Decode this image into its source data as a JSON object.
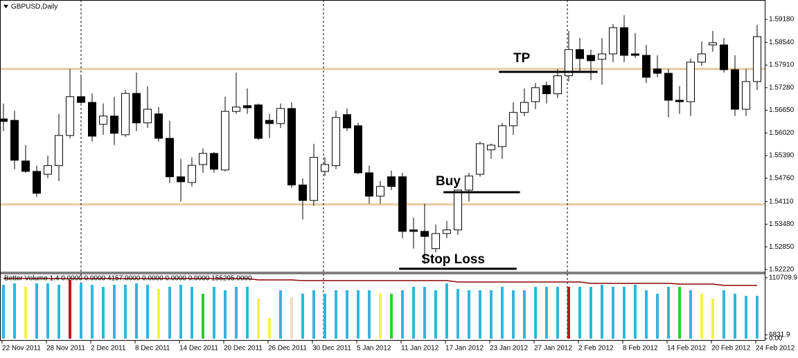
{
  "chart_data": [
    {
      "type": "candlestick",
      "title": "GBPUSD,Daily",
      "categories": [
        "22 Nov 2011",
        null,
        null,
        null,
        "28 Nov 2011",
        null,
        null,
        null,
        "2 Dec 2011",
        null,
        null,
        null,
        "8 Dec 2011",
        null,
        null,
        null,
        "14 Dec 2011",
        null,
        null,
        null,
        "20 Dec 2011",
        null,
        null,
        null,
        "26 Dec 2011",
        null,
        null,
        null,
        "30 Dec 2011",
        null,
        null,
        null,
        "5 Jan 2012",
        null,
        null,
        null,
        "11 Jan 2012",
        null,
        null,
        null,
        "17 Jan 2012",
        null,
        null,
        null,
        "23 Jan 2012",
        null,
        null,
        null,
        "27 Jan 2012",
        null,
        null,
        null,
        "2 Feb 2012",
        null,
        null,
        null,
        "8 Feb 2012",
        null,
        null,
        null,
        "14 Feb 2012",
        null,
        null,
        null,
        "20 Feb 2012",
        null,
        null,
        null,
        "24 Feb 2012"
      ],
      "open": [
        1.5641,
        1.5637,
        1.5524,
        1.5495,
        1.5487,
        1.5511,
        1.5595,
        1.5703,
        1.5687,
        1.5626,
        1.5649,
        1.5597,
        1.5712,
        1.563,
        1.5655,
        1.5587,
        1.548,
        1.5464,
        1.5514,
        1.5545,
        1.5499,
        1.5662,
        1.5678,
        1.568,
        1.5637,
        1.5628,
        1.567,
        1.5457,
        1.5414,
        1.5495,
        1.5511,
        1.5653,
        1.5622,
        1.5491,
        1.5426,
        1.548,
        1.548,
        1.5332,
        1.5328,
        1.528,
        1.5322,
        1.5332,
        1.5443,
        1.5487,
        1.5555,
        1.5564,
        1.5622,
        1.5659,
        1.5689,
        1.5734,
        1.5711,
        1.5761,
        1.5834,
        1.5818,
        1.5807,
        1.5822,
        1.5895,
        1.5822,
        1.5818,
        1.578,
        1.5768,
        1.5693,
        1.5689,
        1.5799,
        1.5847,
        1.5847,
        1.5778,
        1.5668,
        1.5745
      ],
      "high": [
        1.5684,
        1.5664,
        1.5568,
        1.5511,
        1.5539,
        1.5655,
        1.578,
        1.5761,
        1.5712,
        1.5684,
        1.5703,
        1.5722,
        1.577,
        1.5732,
        1.5674,
        1.5636,
        1.553,
        1.5534,
        1.5559,
        1.5549,
        1.5703,
        1.577,
        1.5726,
        1.5684,
        1.5655,
        1.5684,
        1.5687,
        1.5476,
        1.5572,
        1.5534,
        1.5664,
        1.567,
        1.563,
        1.5511,
        1.5468,
        1.5497,
        1.5491,
        1.5366,
        1.5405,
        1.5347,
        1.5357,
        1.5443,
        1.5491,
        1.5578,
        1.5572,
        1.563,
        1.5687,
        1.5726,
        1.5741,
        1.5745,
        1.578,
        1.5886,
        1.5866,
        1.5834,
        1.5866,
        1.5905,
        1.593,
        1.588,
        1.5847,
        1.5818,
        1.578,
        1.5732,
        1.5809,
        1.5857,
        1.5886,
        1.5866,
        1.5818,
        1.578,
        1.5903
      ],
      "low": [
        1.5607,
        1.5501,
        1.5491,
        1.5424,
        1.5476,
        1.5468,
        1.5587,
        1.5684,
        1.5578,
        1.5597,
        1.5568,
        1.5591,
        1.5607,
        1.5616,
        1.5578,
        1.5462,
        1.5411,
        1.5453,
        1.5491,
        1.5491,
        1.5495,
        1.5655,
        1.5655,
        1.5582,
        1.5587,
        1.5616,
        1.5449,
        1.5361,
        1.5399,
        1.5482,
        1.5501,
        1.5607,
        1.5487,
        1.5405,
        1.5405,
        1.5443,
        1.5309,
        1.528,
        1.5237,
        1.527,
        1.5309,
        1.5318,
        1.5411,
        1.548,
        1.553,
        1.553,
        1.5597,
        1.5649,
        1.5668,
        1.5684,
        1.5699,
        1.5745,
        1.577,
        1.5749,
        1.5736,
        1.5799,
        1.5799,
        1.5811,
        1.5741,
        1.5757,
        1.5645,
        1.5655,
        1.5649,
        1.5789,
        1.5828,
        1.577,
        1.5649,
        1.5649,
        1.5722
      ],
      "close": [
        1.5634,
        1.5526,
        1.5495,
        1.5434,
        1.5511,
        1.5595,
        1.5703,
        1.5687,
        1.5593,
        1.5649,
        1.5601,
        1.5712,
        1.563,
        1.5668,
        1.5587,
        1.548,
        1.5466,
        1.5512,
        1.5545,
        1.5501,
        1.5662,
        1.5674,
        1.5672,
        1.5587,
        1.5628,
        1.567,
        1.5457,
        1.5414,
        1.5534,
        1.5514,
        1.5645,
        1.5616,
        1.5491,
        1.5426,
        1.5453,
        1.5453,
        1.5328,
        1.5328,
        1.5314,
        1.5322,
        1.5332,
        1.5443,
        1.5482,
        1.5572,
        1.5568,
        1.5622,
        1.5659,
        1.5687,
        1.5728,
        1.5711,
        1.5761,
        1.5834,
        1.5809,
        1.5803,
        1.5822,
        1.5895,
        1.5818,
        1.5818,
        1.5757,
        1.5768,
        1.5693,
        1.5689,
        1.5799,
        1.5822,
        1.5853,
        1.5778,
        1.5668,
        1.5745,
        1.587
      ],
      "up_color": "#ffffff",
      "down_color": "#000000",
      "ylim": [
        1.5216,
        1.5972
      ],
      "yticks": [
        {
          "value": 1.5918,
          "label": "1.59180"
        },
        {
          "value": 1.5854,
          "label": "1.58540"
        },
        {
          "value": 1.5791,
          "label": "1.57910"
        },
        {
          "value": 1.5728,
          "label": "1.57280"
        },
        {
          "value": 1.5665,
          "label": "1.56650"
        },
        {
          "value": 1.5602,
          "label": "1.56020"
        },
        {
          "value": 1.5539,
          "label": "1.55390"
        },
        {
          "value": 1.5476,
          "label": "1.54760"
        },
        {
          "value": 1.5411,
          "label": "1.54110"
        },
        {
          "value": 1.5348,
          "label": "1.53480"
        },
        {
          "value": 1.5285,
          "label": "1.52850"
        },
        {
          "value": 1.5222,
          "label": "1.52220"
        }
      ],
      "levels": [
        {
          "value": 1.578,
          "color": "#e6cba4"
        },
        {
          "value": 1.5403,
          "color": "#e6cba4"
        }
      ],
      "annotations": [
        {
          "text": "TP",
          "value": 1.5772
        },
        {
          "text": "Buy",
          "value": 1.5437
        },
        {
          "text": "Stop Loss",
          "value": 1.5224
        }
      ]
    },
    {
      "type": "bar",
      "title": "Better Volume 1.4 0.0000 0.0000 4157.0000 0.0000 0.0000 0.0000 155295.0000",
      "values": [
        98100,
        100600,
        94400,
        100600,
        100600,
        98100,
        106900,
        100600,
        98100,
        94400,
        98100,
        98100,
        100600,
        98100,
        90600,
        94400,
        98100,
        94400,
        81800,
        94400,
        88100,
        94400,
        94400,
        73000,
        37700,
        88100,
        75500,
        81800,
        88100,
        81800,
        88100,
        88100,
        88100,
        88100,
        81800,
        81800,
        88100,
        94400,
        94400,
        88100,
        100600,
        90600,
        88100,
        88100,
        88100,
        94400,
        88100,
        88100,
        94400,
        94400,
        94400,
        94400,
        94400,
        94400,
        98100,
        94400,
        94400,
        98100,
        88100,
        81800,
        94400,
        94400,
        88100,
        81800,
        73000,
        88100,
        81800,
        78000,
        78000
      ],
      "colors": [
        "#33b5dc",
        "#33b5dc",
        "#f2f24a",
        "#33b5dc",
        "#33b5dc",
        "#33b5dc",
        "#c0141e",
        "#33b5dc",
        "#33b5dc",
        "#33b5dc",
        "#33b5dc",
        "#33b5dc",
        "#33b5dc",
        "#33b5dc",
        "#f2f24a",
        "#33b5dc",
        "#33b5dc",
        "#33b5dc",
        "#2ecc2e",
        "#33b5dc",
        "#33b5dc",
        "#33b5dc",
        "#33b5dc",
        "#f2f24a",
        "#f2f24a",
        "#33b5dc",
        "#f0dcc0",
        "#33b5dc",
        "#33b5dc",
        "#33b5dc",
        "#33b5dc",
        "#33b5dc",
        "#33b5dc",
        "#33b5dc",
        "#f2f24a",
        "#2ecc2e",
        "#33b5dc",
        "#33b5dc",
        "#33b5dc",
        "#33b5dc",
        "#33b5dc",
        "#33b5dc",
        "#33b5dc",
        "#33b5dc",
        "#33b5dc",
        "#33b5dc",
        "#33b5dc",
        "#33b5dc",
        "#33b5dc",
        "#33b5dc",
        "#33b5dc",
        "#c0141e",
        "#33b5dc",
        "#33b5dc",
        "#33b5dc",
        "#33b5dc",
        "#33b5dc",
        "#33b5dc",
        "#33b5dc",
        "#33b5dc",
        "#33b5dc",
        "#2ecc2e",
        "#33b5dc",
        "#f2f24a",
        "#f2f24a",
        "#33b5dc",
        "#33b5dc",
        "#33b5dc",
        "#33b5dc"
      ],
      "ylim": [
        0,
        110709.9
      ],
      "yticks": [
        110709.9,
        6831.9,
        {
          "value": 0,
          "label": "0.00"
        }
      ],
      "average": {
        "color": "#8b0000",
        "values": [
          109500,
          109500,
          109500,
          109500,
          109500,
          109500,
          109500,
          109500,
          109500,
          109500,
          109500,
          109500,
          109500,
          109500,
          109500,
          109500,
          109500,
          109500,
          109500,
          109500,
          109500,
          109500,
          109500,
          106900,
          106900,
          106900,
          106900,
          105600,
          105600,
          105600,
          105600,
          105600,
          105600,
          105600,
          105600,
          105600,
          105600,
          105600,
          105600,
          105600,
          105600,
          103100,
          103100,
          103100,
          103100,
          103100,
          103100,
          103100,
          103100,
          103100,
          103100,
          103100,
          103100,
          100600,
          100600,
          100600,
          100600,
          100600,
          100600,
          100600,
          100600,
          99400,
          99400,
          99400,
          99400,
          96900,
          96900,
          96900,
          96900
        ]
      }
    }
  ]
}
